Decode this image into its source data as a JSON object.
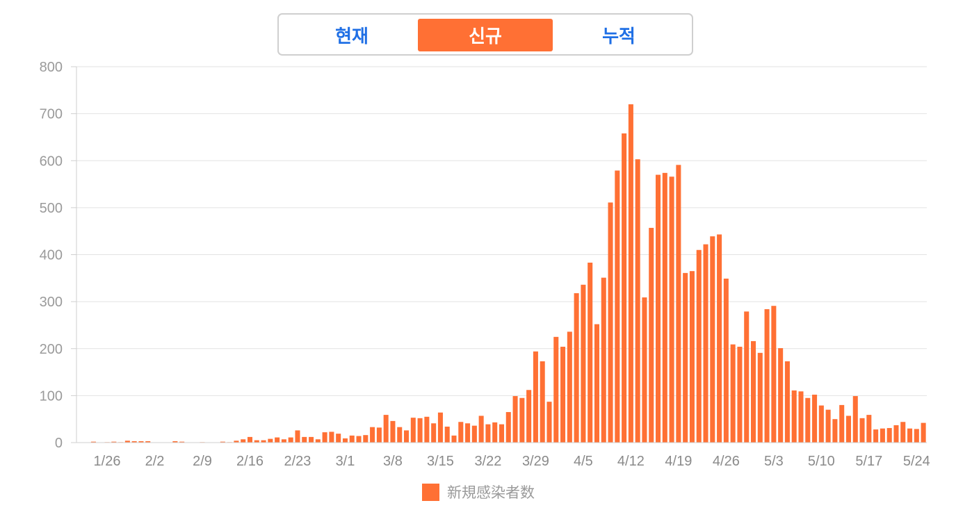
{
  "tabs": [
    {
      "label": "현재",
      "active": false
    },
    {
      "label": "신규",
      "active": true
    },
    {
      "label": "누적",
      "active": false
    }
  ],
  "colors": {
    "bar": "#ff7034",
    "tab_active_bg": "#ff7034",
    "tab_text": "#1f6fe5",
    "grid": "#e2e2e2",
    "axis_text": "#9a9a9a"
  },
  "legend": {
    "label": "新規感染者数"
  },
  "chart_data": {
    "type": "bar",
    "start_date": "1/22",
    "series": [
      {
        "name": "新規感染者数",
        "values": [
          0,
          0,
          2,
          0,
          1,
          2,
          1,
          4,
          3,
          3,
          3,
          0,
          0,
          0,
          3,
          2,
          0,
          0,
          1,
          0,
          0,
          2,
          1,
          4,
          7,
          12,
          5,
          5,
          8,
          11,
          7,
          11,
          26,
          12,
          12,
          7,
          22,
          23,
          19,
          9,
          15,
          14,
          16,
          33,
          32,
          59,
          46,
          33,
          26,
          53,
          52,
          55,
          41,
          64,
          34,
          15,
          44,
          41,
          36,
          57,
          39,
          43,
          39,
          65,
          99,
          95,
          112,
          194,
          173,
          87,
          225,
          204,
          236,
          318,
          336,
          383,
          252,
          351,
          511,
          579,
          658,
          720,
          603,
          309,
          457,
          570,
          574,
          566,
          591,
          361,
          365,
          410,
          422,
          439,
          443,
          349,
          209,
          204,
          279,
          216,
          191,
          284,
          291,
          201,
          173,
          111,
          109,
          95,
          102,
          79,
          70,
          50,
          80,
          57,
          99,
          52,
          59,
          28,
          30,
          31,
          37,
          44,
          30,
          29,
          42
        ]
      }
    ],
    "xtick_labels": [
      "1/26",
      "2/2",
      "2/9",
      "2/16",
      "2/23",
      "3/1",
      "3/8",
      "3/15",
      "3/22",
      "3/29",
      "4/5",
      "4/12",
      "4/19",
      "4/26",
      "5/3",
      "5/10",
      "5/17",
      "5/24"
    ],
    "ylim": [
      0,
      800
    ],
    "yticks": [
      0,
      100,
      200,
      300,
      400,
      500,
      600,
      700,
      800
    ],
    "grid": true,
    "legend_position": "bottom-center"
  }
}
